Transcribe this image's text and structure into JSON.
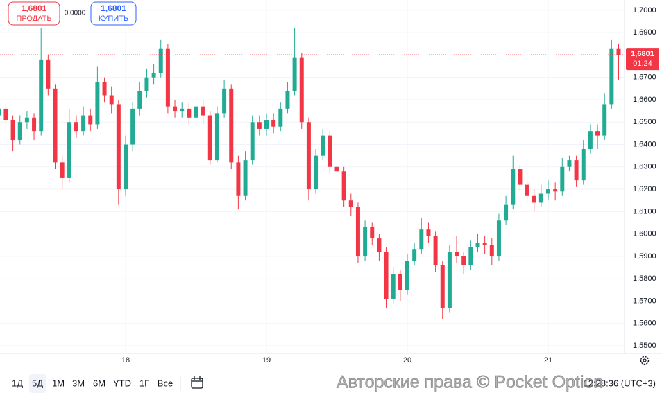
{
  "chart_data": {
    "type": "candlestick",
    "categories": [
      null,
      null,
      null,
      null,
      null,
      null,
      null,
      null,
      null,
      null,
      null,
      null,
      null,
      null,
      null,
      null,
      null,
      null,
      "18",
      null,
      null,
      null,
      null,
      null,
      null,
      null,
      null,
      null,
      null,
      null,
      null,
      null,
      null,
      null,
      null,
      null,
      null,
      null,
      "19",
      null,
      null,
      null,
      null,
      null,
      null,
      null,
      null,
      null,
      null,
      null,
      null,
      null,
      null,
      null,
      null,
      null,
      null,
      null,
      "20",
      null,
      null,
      null,
      null,
      null,
      null,
      null,
      null,
      null,
      null,
      null,
      null,
      null,
      null,
      null,
      null,
      null,
      null,
      null,
      "21",
      null,
      null,
      null,
      null,
      null,
      null,
      null,
      null,
      null,
      null
    ],
    "open": [
      1.653,
      1.656,
      1.651,
      1.642,
      1.65,
      1.652,
      1.646,
      1.678,
      1.665,
      1.632,
      1.625,
      1.65,
      1.646,
      1.653,
      1.649,
      1.668,
      1.662,
      1.658,
      1.62,
      1.64,
      1.656,
      1.664,
      1.67,
      1.672,
      1.683,
      1.657,
      1.655,
      1.656,
      1.652,
      1.657,
      1.653,
      1.633,
      1.654,
      1.665,
      1.632,
      1.617,
      1.633,
      1.65,
      1.647,
      1.651,
      1.648,
      1.656,
      1.664,
      1.679,
      1.65,
      1.62,
      1.635,
      1.644,
      1.63,
      1.628,
      1.615,
      1.612,
      1.59,
      1.603,
      1.598,
      1.592,
      1.571,
      1.582,
      1.575,
      1.588,
      1.593,
      1.602,
      1.599,
      1.586,
      1.567,
      1.592,
      1.59,
      1.586,
      1.594,
      1.596,
      1.595,
      1.59,
      1.606,
      1.613,
      1.629,
      1.622,
      1.617,
      1.614,
      1.618,
      1.62,
      1.619,
      1.63,
      1.633,
      1.624,
      1.638,
      1.646,
      1.644,
      1.658,
      1.683
    ],
    "high": [
      1.66,
      1.659,
      1.653,
      1.653,
      1.655,
      1.654,
      1.692,
      1.68,
      1.667,
      1.635,
      1.656,
      1.653,
      1.657,
      1.656,
      1.675,
      1.67,
      1.666,
      1.66,
      1.644,
      1.659,
      1.668,
      1.674,
      1.676,
      1.687,
      1.685,
      1.66,
      1.659,
      1.659,
      1.66,
      1.66,
      1.655,
      1.657,
      1.669,
      1.667,
      1.635,
      1.637,
      1.653,
      1.653,
      1.654,
      1.654,
      1.659,
      1.668,
      1.692,
      1.681,
      1.652,
      1.638,
      1.647,
      1.646,
      1.633,
      1.63,
      1.618,
      1.614,
      1.606,
      1.605,
      1.6,
      1.594,
      1.585,
      1.584,
      1.591,
      1.596,
      1.607,
      1.605,
      1.601,
      1.588,
      1.595,
      1.599,
      1.592,
      1.597,
      1.6,
      1.599,
      1.598,
      1.609,
      1.617,
      1.635,
      1.631,
      1.625,
      1.62,
      1.622,
      1.624,
      1.623,
      1.634,
      1.635,
      1.635,
      1.642,
      1.649,
      1.649,
      1.663,
      1.687,
      1.685
    ],
    "low": [
      1.65,
      1.648,
      1.637,
      1.64,
      1.647,
      1.642,
      1.644,
      1.662,
      1.629,
      1.62,
      1.623,
      1.643,
      1.644,
      1.646,
      1.647,
      1.659,
      1.654,
      1.613,
      1.617,
      1.637,
      1.653,
      1.661,
      1.667,
      1.67,
      1.654,
      1.652,
      1.652,
      1.649,
      1.65,
      1.649,
      1.631,
      1.632,
      1.652,
      1.629,
      1.611,
      1.615,
      1.631,
      1.644,
      1.644,
      1.645,
      1.646,
      1.654,
      1.662,
      1.647,
      1.615,
      1.618,
      1.633,
      1.627,
      1.624,
      1.612,
      1.608,
      1.587,
      1.588,
      1.595,
      1.588,
      1.567,
      1.569,
      1.57,
      1.573,
      1.586,
      1.591,
      1.596,
      1.583,
      1.562,
      1.565,
      1.587,
      1.582,
      1.584,
      1.592,
      1.591,
      1.586,
      1.588,
      1.604,
      1.611,
      1.619,
      1.614,
      1.61,
      1.612,
      1.615,
      1.615,
      1.617,
      1.628,
      1.621,
      1.622,
      1.636,
      1.638,
      1.642,
      1.656,
      1.669
    ],
    "close": [
      1.656,
      1.651,
      1.642,
      1.65,
      1.652,
      1.646,
      1.678,
      1.665,
      1.632,
      1.625,
      1.65,
      1.646,
      1.653,
      1.649,
      1.668,
      1.662,
      1.658,
      1.62,
      1.64,
      1.656,
      1.664,
      1.67,
      1.672,
      1.683,
      1.657,
      1.655,
      1.656,
      1.652,
      1.657,
      1.653,
      1.633,
      1.654,
      1.665,
      1.632,
      1.617,
      1.633,
      1.65,
      1.647,
      1.651,
      1.648,
      1.656,
      1.664,
      1.679,
      1.65,
      1.62,
      1.635,
      1.644,
      1.63,
      1.628,
      1.615,
      1.612,
      1.59,
      1.603,
      1.598,
      1.592,
      1.571,
      1.582,
      1.575,
      1.588,
      1.593,
      1.602,
      1.599,
      1.586,
      1.567,
      1.592,
      1.59,
      1.586,
      1.594,
      1.596,
      1.595,
      1.59,
      1.606,
      1.613,
      1.629,
      1.622,
      1.617,
      1.614,
      1.618,
      1.62,
      1.619,
      1.63,
      1.633,
      1.624,
      1.638,
      1.646,
      1.644,
      1.658,
      1.683,
      1.6801
    ],
    "up_color": "#22ab94",
    "down_color": "#f23645",
    "ylim": [
      1.5466,
      1.7046
    ],
    "yticks": [
      {
        "value": 1.55,
        "label": "1,5500"
      },
      {
        "value": 1.56,
        "label": "1,5600"
      },
      {
        "value": 1.57,
        "label": "1,5700"
      },
      {
        "value": 1.58,
        "label": "1,5800"
      },
      {
        "value": 1.59,
        "label": "1,5900"
      },
      {
        "value": 1.6,
        "label": "1,6000"
      },
      {
        "value": 1.61,
        "label": "1,6100"
      },
      {
        "value": 1.62,
        "label": "1,6200"
      },
      {
        "value": 1.63,
        "label": "1,6300"
      },
      {
        "value": 1.64,
        "label": "1,6400"
      },
      {
        "value": 1.65,
        "label": "1,6500"
      },
      {
        "value": 1.66,
        "label": "1,6600"
      },
      {
        "value": 1.67,
        "label": "1,6700"
      },
      {
        "value": 1.68,
        "label": "1,6800"
      },
      {
        "value": 1.69,
        "label": "1,6900"
      },
      {
        "value": 1.7,
        "label": "1,7000"
      }
    ],
    "grid": true,
    "current_price": {
      "value": 1.6801,
      "label": "1,6801"
    },
    "countdown": "01:24"
  },
  "trade_panel": {
    "sell_price": "1,6801",
    "sell_label": "ПРОДАТЬ",
    "spread": "0,0000",
    "buy_price": "1,6801",
    "buy_label": "КУПИТЬ"
  },
  "toolbar": {
    "ranges": [
      "1Д",
      "5Д",
      "1М",
      "3М",
      "6М",
      "YTD",
      "1Г",
      "Все"
    ],
    "clock": "12:28:36 (UTC+3)"
  },
  "watermark": "Авторские права © Pocket Option"
}
